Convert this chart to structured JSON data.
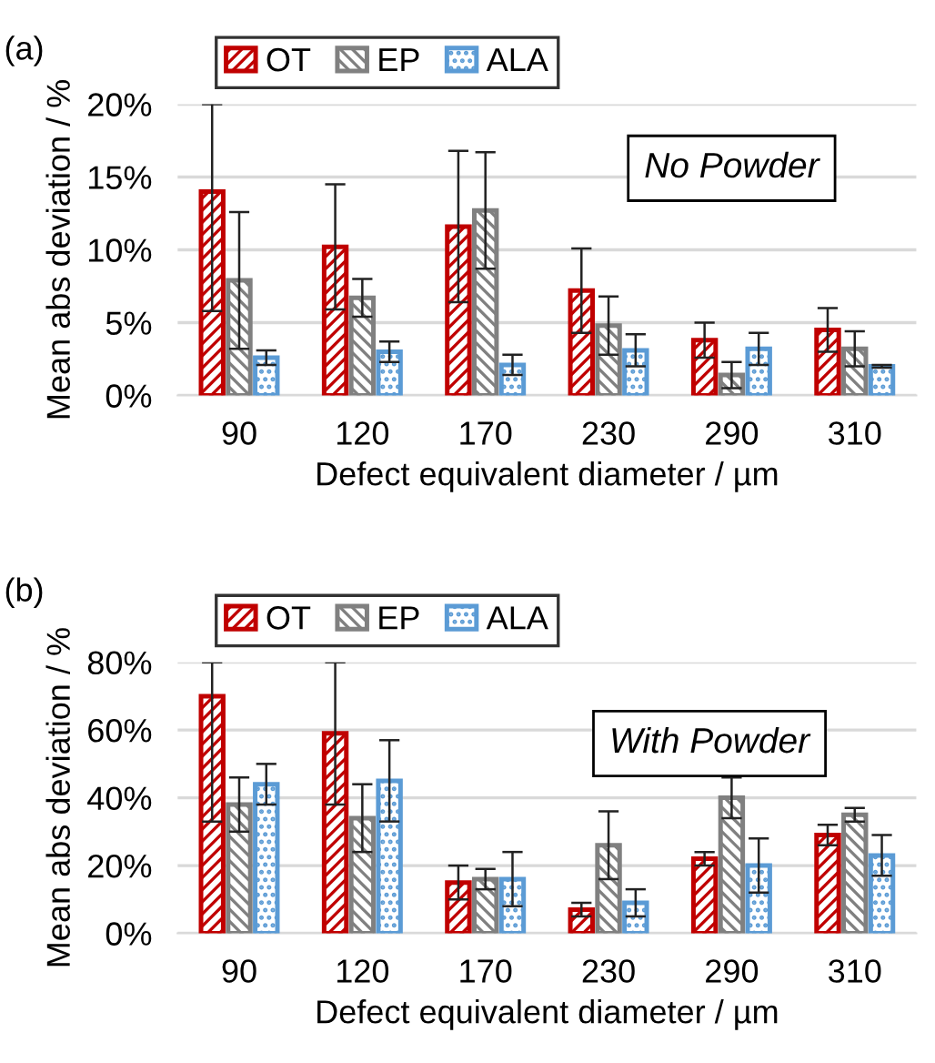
{
  "chart_data": [
    {
      "type": "bar",
      "xlabel": "Defect equivalent diameter / µm",
      "ylabel": "Mean abs deviation / %",
      "annotations": [
        "(a)",
        "No Powder"
      ],
      "categories": [
        "90",
        "120",
        "170",
        "230",
        "290",
        "310"
      ],
      "series": [
        {
          "name": "OT",
          "color": "#c00000",
          "values": [
            14.0,
            10.2,
            11.6,
            7.2,
            3.8,
            4.5
          ],
          "errors": [
            [
              5.8,
              20
            ],
            4.3,
            5.2,
            2.9,
            1.2,
            1.5
          ]
        },
        {
          "name": "EP",
          "color": "#808080",
          "values": [
            7.9,
            6.7,
            12.7,
            4.8,
            1.4,
            3.2
          ],
          "errors": [
            4.7,
            1.3,
            4.0,
            2.0,
            0.9,
            1.2
          ]
        },
        {
          "name": "ALA",
          "color": "#5b9bd5",
          "values": [
            2.6,
            3.0,
            2.1,
            3.1,
            3.2,
            2.0
          ],
          "errors": [
            0.5,
            0.7,
            0.7,
            1.1,
            1.1,
            0.1
          ]
        }
      ],
      "ylim": [
        0,
        20
      ],
      "yticks": [
        {
          "value": 0,
          "label": "0%"
        },
        {
          "value": 5,
          "label": "5%"
        },
        {
          "value": 10,
          "label": "10%"
        },
        {
          "value": 15,
          "label": "15%"
        },
        {
          "value": 20,
          "label": "20%"
        }
      ],
      "grid": "y",
      "legend": "top left"
    },
    {
      "type": "bar",
      "xlabel": "Defect equivalent diameter / µm",
      "ylabel": "Mean abs deviation / %",
      "annotations": [
        "(b)",
        "With Powder"
      ],
      "categories": [
        "90",
        "120",
        "170",
        "230",
        "290",
        "310"
      ],
      "series": [
        {
          "name": "OT",
          "color": "#c00000",
          "values": [
            70,
            59,
            15,
            7,
            22,
            29
          ],
          "errors": [
            [
              33,
              80
            ],
            21,
            5,
            2,
            2,
            3
          ]
        },
        {
          "name": "EP",
          "color": "#808080",
          "values": [
            38,
            34,
            16,
            26,
            40,
            35
          ],
          "errors": [
            8,
            10,
            3,
            10,
            6,
            2
          ]
        },
        {
          "name": "ALA",
          "color": "#5b9bd5",
          "values": [
            44,
            45,
            16,
            9,
            20,
            23
          ],
          "errors": [
            6,
            12,
            8,
            4,
            8,
            6
          ]
        }
      ],
      "ylim": [
        0,
        80
      ],
      "yticks": [
        {
          "value": 0,
          "label": "0%"
        },
        {
          "value": 20,
          "label": "20%"
        },
        {
          "value": 40,
          "label": "40%"
        },
        {
          "value": 60,
          "label": "60%"
        },
        {
          "value": 80,
          "label": "80%"
        }
      ],
      "grid": "y",
      "legend": "top left"
    }
  ]
}
